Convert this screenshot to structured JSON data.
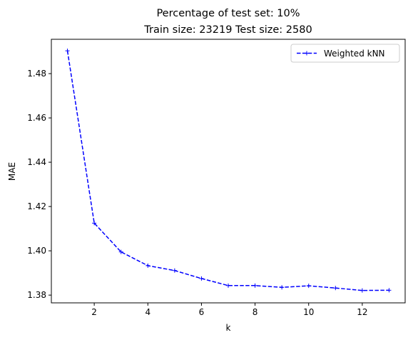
{
  "chart_data": {
    "type": "line",
    "title": [
      "Percentage of test set: 10%",
      "Train size: 23219 Test size: 2580"
    ],
    "xlabel": "k",
    "ylabel": "MAE",
    "xlim": [
      0.4,
      13.6
    ],
    "ylim": [
      1.3765,
      1.4955
    ],
    "xticks": [
      2,
      4,
      6,
      8,
      10,
      12
    ],
    "xtick_labels": [
      "2",
      "4",
      "6",
      "8",
      "10",
      "12"
    ],
    "yticks": [
      1.38,
      1.4,
      1.42,
      1.44,
      1.46,
      1.48
    ],
    "ytick_labels": [
      "1.38",
      "1.40",
      "1.42",
      "1.44",
      "1.46",
      "1.48"
    ],
    "grid": false,
    "legend_position": "top-right",
    "series": [
      {
        "name": "Weighted kNN",
        "color": "#0000ff",
        "linestyle": "dashed",
        "marker": "plus",
        "x": [
          1,
          2,
          3,
          4,
          5,
          6,
          7,
          8,
          9,
          10,
          11,
          12,
          13
        ],
        "y": [
          1.4903,
          1.4125,
          1.3995,
          1.3933,
          1.3911,
          1.3875,
          1.3843,
          1.3843,
          1.3835,
          1.3842,
          1.3832,
          1.3821,
          1.3822
        ]
      }
    ]
  }
}
